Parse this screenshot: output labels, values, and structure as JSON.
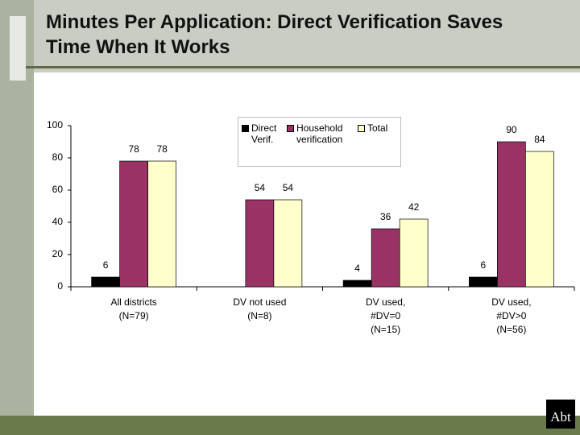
{
  "header": {
    "title": "Minutes Per Application: Direct Verification Saves Time When It Works"
  },
  "logo": "Abt",
  "chart_data": {
    "type": "bar",
    "categories": [
      [
        "All districts",
        "(N=79)"
      ],
      [
        "DV not used",
        "(N=8)"
      ],
      [
        "DV used,",
        "#DV=0",
        "(N=15)"
      ],
      [
        "DV used,",
        "#DV>0",
        "(N=56)"
      ]
    ],
    "series": [
      {
        "name": "Direct Verif.",
        "color": "#000000",
        "values": [
          6,
          null,
          4,
          6
        ]
      },
      {
        "name": "Household verification",
        "color": "#993366",
        "values": [
          78,
          54,
          36,
          90
        ]
      },
      {
        "name": "Total",
        "color": "#ffffcc",
        "values": [
          78,
          54,
          42,
          84
        ]
      }
    ],
    "ylim": [
      0,
      100
    ],
    "yticks": [
      0,
      20,
      40,
      60,
      80,
      100
    ],
    "grid": false,
    "legend": "top center"
  }
}
